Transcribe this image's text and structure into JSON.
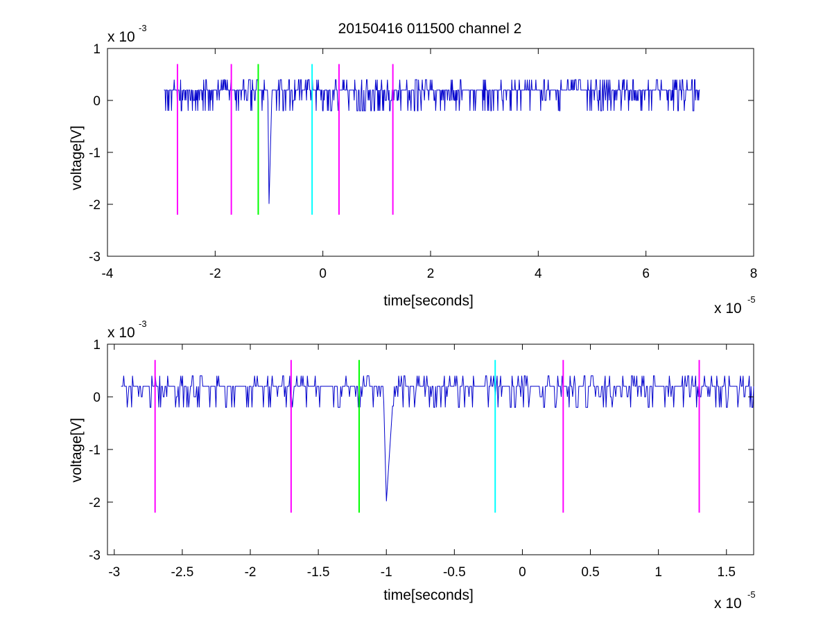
{
  "figure": {
    "title": "20150416 011500 channel 2"
  },
  "colors": {
    "signal": "#0000cc",
    "marker_magenta": "#ff00ff",
    "marker_green": "#00ff00",
    "marker_cyan": "#00ffff",
    "axes": "#000000"
  },
  "chart_data": [
    {
      "type": "line",
      "title": "20150416 011500 channel 2",
      "xlabel": "time[seconds]",
      "ylabel": "voltage[V]",
      "x_multiplier": {
        "base": "x 10",
        "exp": "-5"
      },
      "y_multiplier": {
        "base": "x 10",
        "exp": "-3"
      },
      "xlim": [
        -4e-05,
        8e-05
      ],
      "ylim": [
        -0.003,
        0.001
      ],
      "x_ticks": [
        -4,
        -2,
        0,
        2,
        4,
        6,
        8
      ],
      "y_ticks": [
        1,
        0,
        -1,
        -2,
        -3
      ],
      "grid": false,
      "series": [
        {
          "color": "signal",
          "x_range": [
            -2.95e-05,
            7e-05
          ],
          "baseline": 0.0002,
          "noise_levels": [
            0.0004,
            0.0002,
            0.0,
            -0.0002
          ],
          "spike": {
            "x": [
              -1.02e-05,
              -1e-05,
              -9.8e-06,
              -9.5e-06
            ],
            "y": [
              0.0,
              -0.002,
              -0.0012,
              0.0
            ]
          }
        }
      ],
      "markers": [
        {
          "x": -2.7e-05,
          "color": "marker_magenta",
          "y_range": [
            -0.0022,
            0.0007
          ]
        },
        {
          "x": -1.7e-05,
          "color": "marker_magenta",
          "y_range": [
            -0.0022,
            0.0007
          ]
        },
        {
          "x": -1.2e-05,
          "color": "marker_green",
          "y_range": [
            -0.0022,
            0.0007
          ]
        },
        {
          "x": -2e-06,
          "color": "marker_cyan",
          "y_range": [
            -0.0022,
            0.0007
          ]
        },
        {
          "x": 3e-06,
          "color": "marker_magenta",
          "y_range": [
            -0.0022,
            0.0007
          ]
        },
        {
          "x": 1.3e-05,
          "color": "marker_magenta",
          "y_range": [
            -0.0022,
            0.0007
          ]
        }
      ]
    },
    {
      "type": "line",
      "title": "",
      "xlabel": "time[seconds]",
      "ylabel": "voltage[V]",
      "x_multiplier": {
        "base": "x 10",
        "exp": "-5"
      },
      "y_multiplier": {
        "base": "x 10",
        "exp": "-3"
      },
      "xlim": [
        -3.05e-05,
        1.7e-05
      ],
      "ylim": [
        -0.003,
        0.001
      ],
      "x_ticks": [
        "-3",
        "-2.5",
        "-2",
        "-1.5",
        "-1",
        "-0.5",
        "0",
        "0.5",
        "1",
        "1.5"
      ],
      "y_ticks": [
        1,
        0,
        -1,
        -2,
        -3
      ],
      "grid": false,
      "series": [
        {
          "color": "signal",
          "x_range": [
            -2.95e-05,
            1.7e-05
          ],
          "baseline": 0.0002,
          "noise_levels": [
            0.0004,
            0.0002,
            0.0,
            -0.0002
          ],
          "spike": {
            "x": [
              -1.02e-05,
              -1e-05,
              -9.8e-06,
              -9.5e-06
            ],
            "y": [
              0.0,
              -0.002,
              -0.0012,
              0.0
            ]
          }
        }
      ],
      "markers": [
        {
          "x": -2.7e-05,
          "color": "marker_magenta",
          "y_range": [
            -0.0022,
            0.0007
          ]
        },
        {
          "x": -1.7e-05,
          "color": "marker_magenta",
          "y_range": [
            -0.0022,
            0.0007
          ]
        },
        {
          "x": -1.2e-05,
          "color": "marker_green",
          "y_range": [
            -0.0022,
            0.0007
          ]
        },
        {
          "x": -2e-06,
          "color": "marker_cyan",
          "y_range": [
            -0.0022,
            0.0007
          ]
        },
        {
          "x": 3e-06,
          "color": "marker_magenta",
          "y_range": [
            -0.0022,
            0.0007
          ]
        },
        {
          "x": 1.3e-05,
          "color": "marker_magenta",
          "y_range": [
            -0.0022,
            0.0007
          ]
        }
      ]
    }
  ]
}
